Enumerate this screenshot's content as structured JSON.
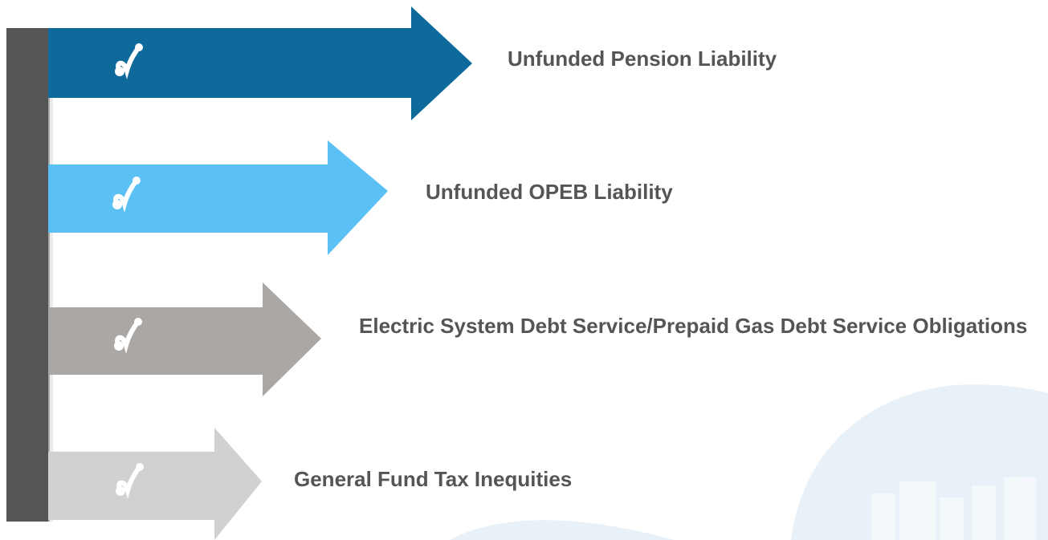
{
  "items": [
    {
      "label": "Unfunded Pension Liability"
    },
    {
      "label": "Unfunded OPEB Liability"
    },
    {
      "label": "Electric System Debt Service/Prepaid Gas Debt Service Obligations"
    },
    {
      "label": "General Fund Tax Inequities"
    }
  ]
}
